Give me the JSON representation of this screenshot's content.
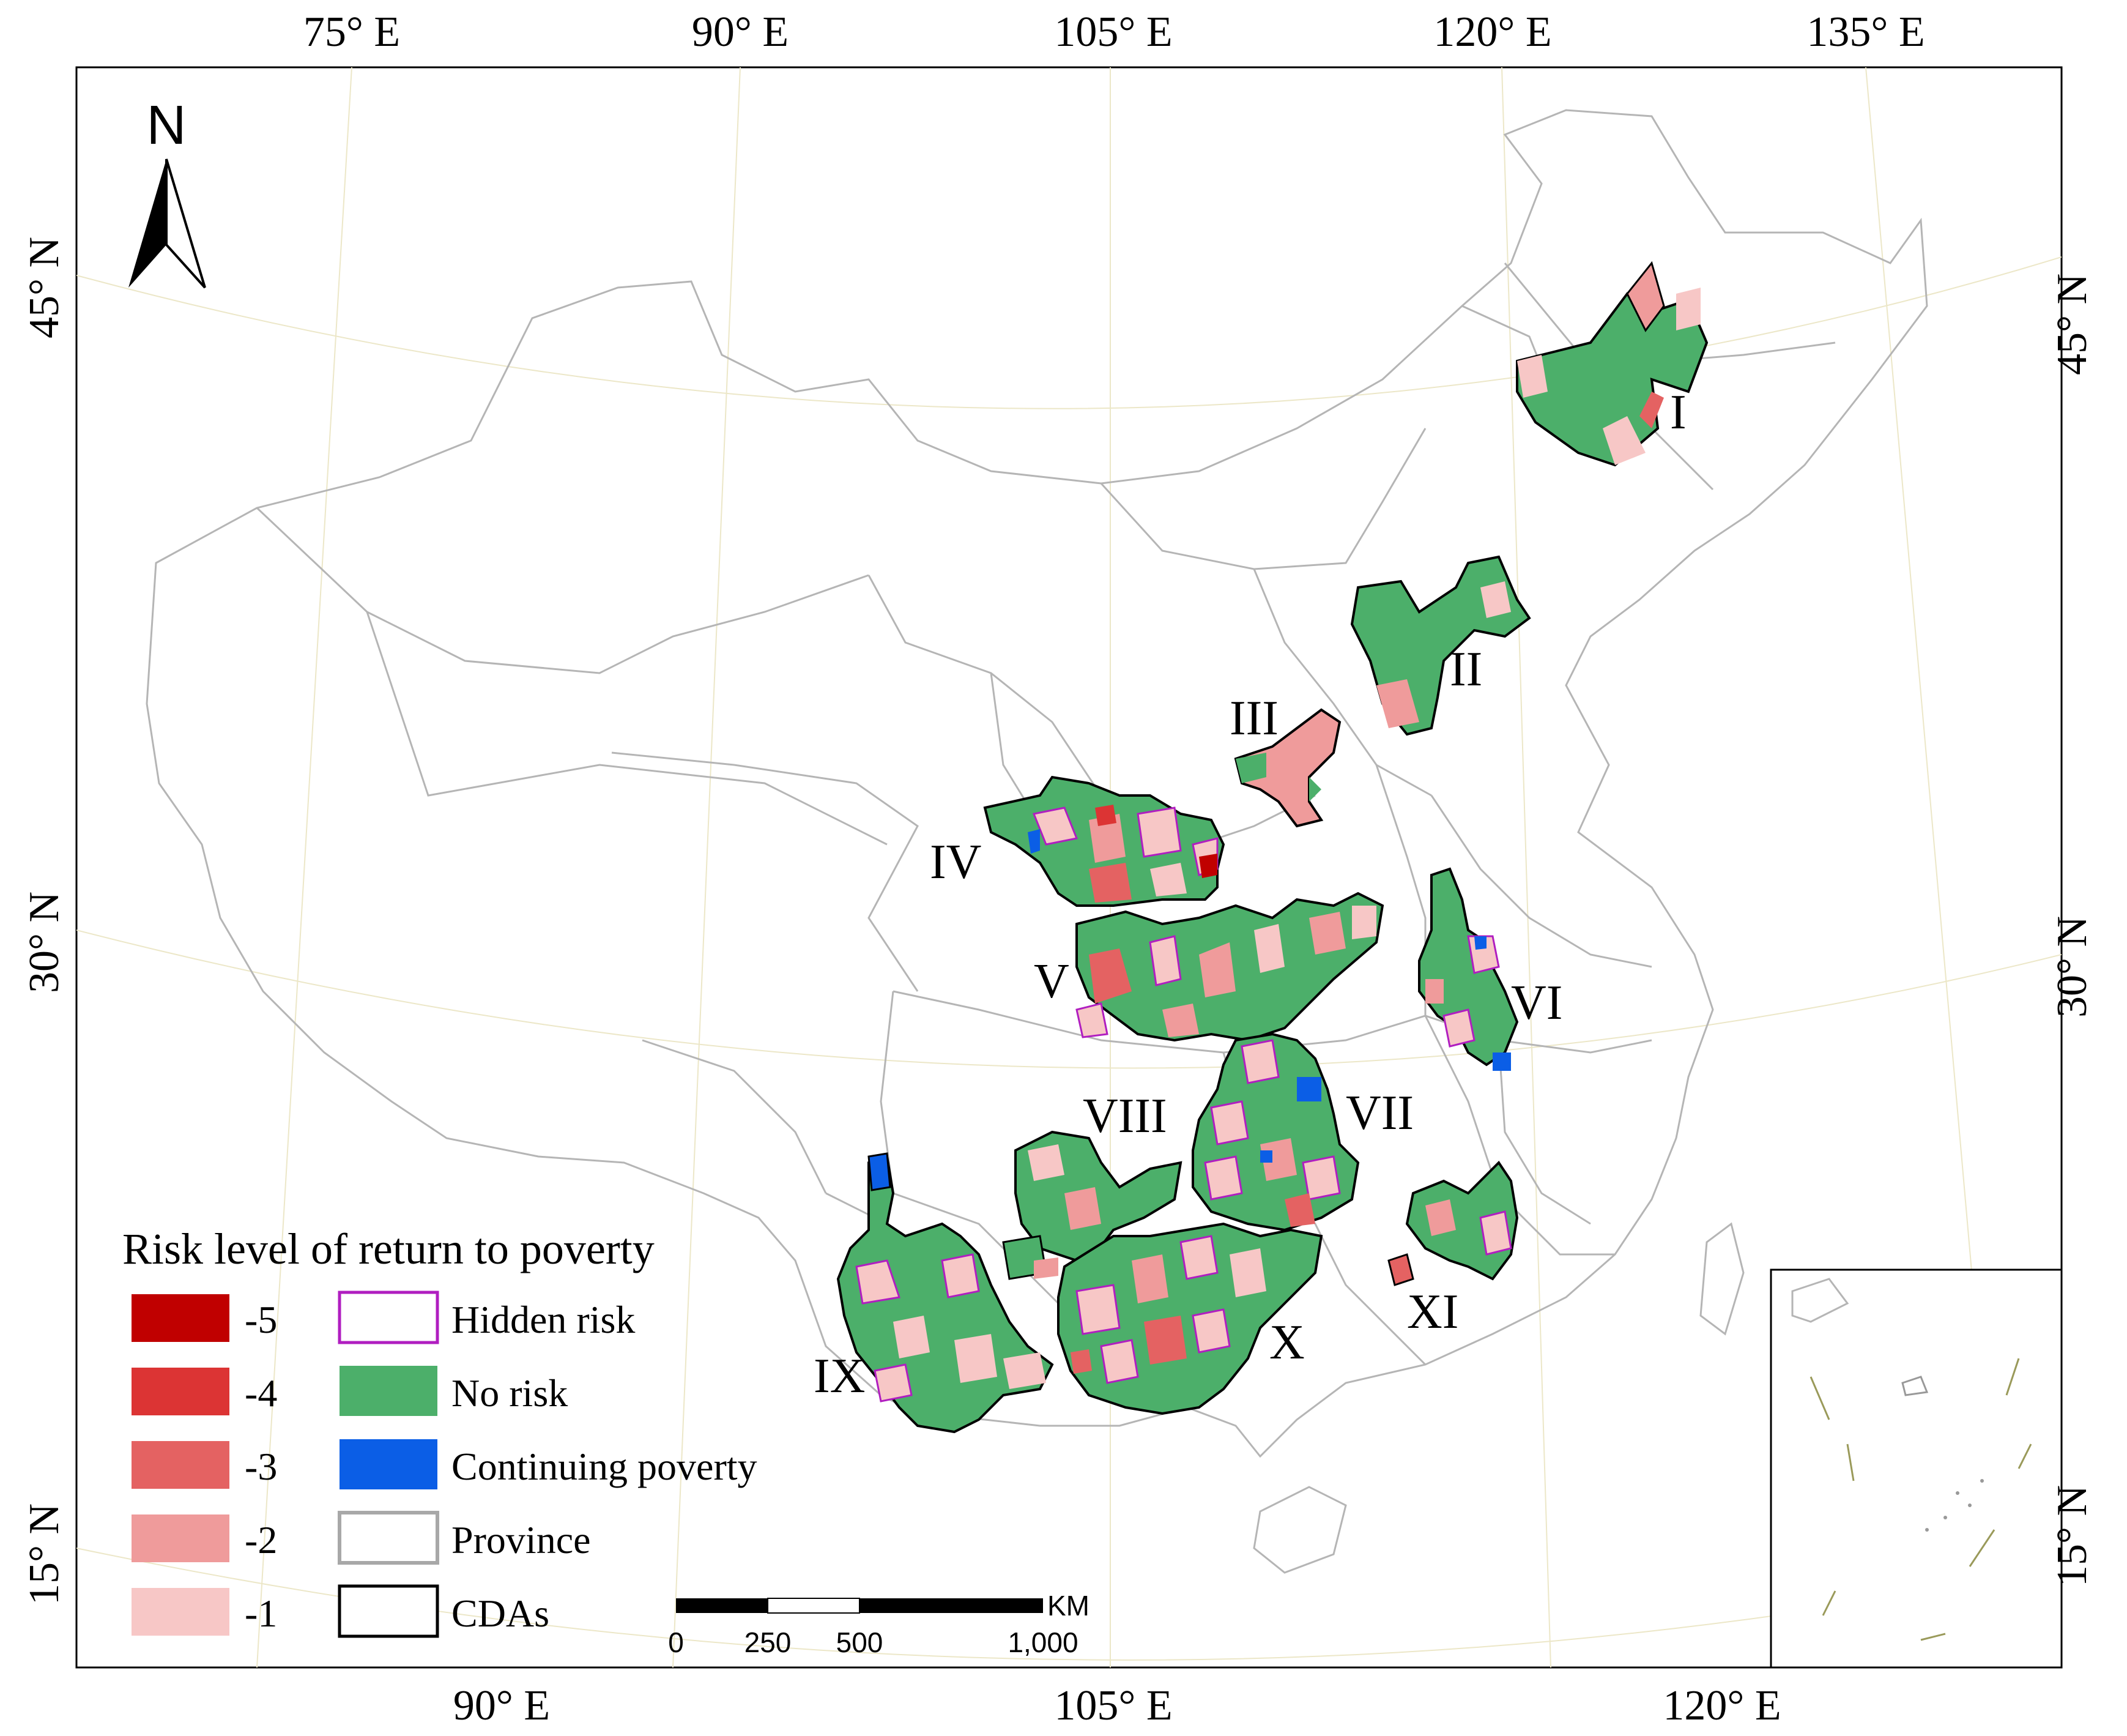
{
  "axes": {
    "top_lon": [
      "75° E",
      "90° E",
      "105° E",
      "120° E",
      "135° E"
    ],
    "bottom_lon": [
      "90° E",
      "105° E",
      "120° E"
    ],
    "left_lat": [
      "45° N",
      "30° N",
      "15° N"
    ],
    "right_lat": [
      "45° N",
      "30° N",
      "15° N"
    ]
  },
  "north_arrow": {
    "label": "N"
  },
  "regions": [
    "I",
    "II",
    "III",
    "IV",
    "V",
    "VI",
    "VII",
    "VIII",
    "IX",
    "X",
    "XI"
  ],
  "legend": {
    "title": "Risk level of return to poverty",
    "risk_levels": [
      {
        "label": "-5",
        "color": "#c00000"
      },
      {
        "label": "-4",
        "color": "#dc3434"
      },
      {
        "label": "-3",
        "color": "#e46262"
      },
      {
        "label": "-2",
        "color": "#ef9b9b"
      },
      {
        "label": "-1",
        "color": "#f7c7c6"
      }
    ],
    "categories": [
      {
        "label": "Hidden risk",
        "color": "#b01ec0"
      },
      {
        "label": "No risk",
        "color": "#4caf6a"
      },
      {
        "label": "Continuing poverty",
        "color": "#0b5ee6"
      },
      {
        "label": "Province",
        "color": "#a8a8a8"
      },
      {
        "label": "CDAs",
        "color": "#000000"
      }
    ]
  },
  "scale_bar": {
    "unit": "KM",
    "ticks": [
      "0",
      "250",
      "500",
      "1,000"
    ]
  },
  "colors": {
    "no_risk": "#4caf6a",
    "hidden_risk": "#b01ec0",
    "continuing_poverty": "#0b5ee6",
    "province": "#b5b5b5"
  }
}
